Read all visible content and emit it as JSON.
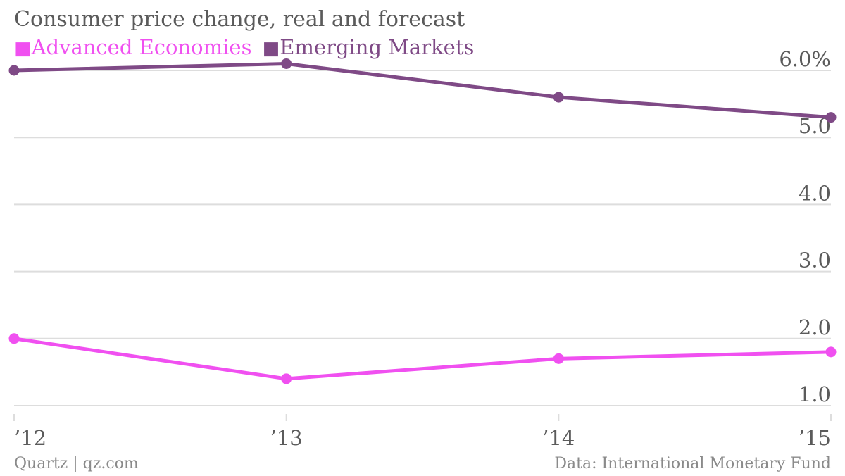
{
  "header": {
    "title": "Consumer price change, real and forecast"
  },
  "footer": {
    "source_left": "Quartz | qz.com",
    "source_right": "Data: International Monetary Fund"
  },
  "colors": {
    "advanced": "#f050f0",
    "emerging": "#7f4a86",
    "grid": "#dddddd",
    "tick_text": "#5b5b5b"
  },
  "chart_data": {
    "type": "line",
    "title": "Consumer price change, real and forecast",
    "x": [
      "’12",
      "’13",
      "’14",
      "’15"
    ],
    "xlabel": "",
    "ylabel": "",
    "ylim": [
      1.0,
      6.0
    ],
    "y_ticks": [
      6.0,
      5.0,
      4.0,
      3.0,
      2.0,
      1.0
    ],
    "y_tick_labels": [
      "6.0%",
      "5.0",
      "4.0",
      "3.0",
      "2.0",
      "1.0"
    ],
    "grid": true,
    "legend_position": "top-left",
    "series": [
      {
        "name": "Advanced Economies",
        "values": [
          2.0,
          1.4,
          1.7,
          1.8
        ]
      },
      {
        "name": "Emerging Markets",
        "values": [
          6.0,
          6.1,
          5.6,
          5.3
        ]
      }
    ]
  }
}
